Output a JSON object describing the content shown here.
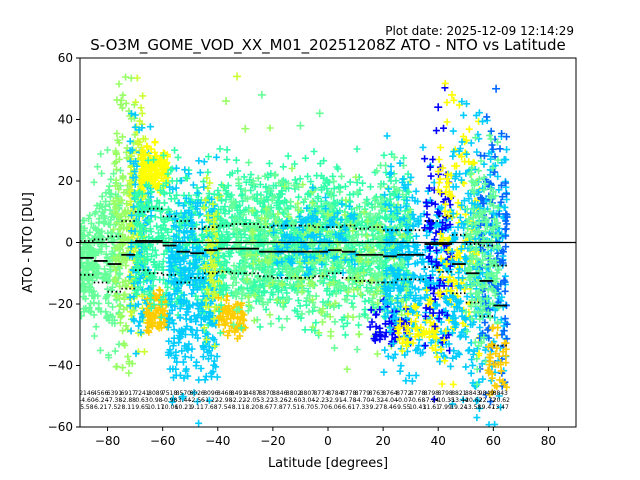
{
  "plot_date": "Plot date: 2025-12-09 12:14:29",
  "chart_data": {
    "type": "scatter",
    "title": "S-O3M_GOME_VOD_XX_M01_20251208Z ATO - NTO vs Latitude",
    "xlabel": "Latitude [degrees]",
    "ylabel": "ATO - NTO [DU]",
    "xlim": [
      -90,
      90
    ],
    "ylim": [
      -60,
      60
    ],
    "x_ticks": [
      -80,
      -60,
      -40,
      -20,
      0,
      20,
      40,
      60,
      80
    ],
    "y_ticks": [
      -60,
      -40,
      -20,
      0,
      20,
      40,
      60
    ],
    "grid": false,
    "zero_line": 0,
    "bins": [
      {
        "lat": -87.5,
        "mean": -5.0,
        "std": 5.5
      },
      {
        "lat": -82.5,
        "mean": -6.0,
        "std": 7.0
      },
      {
        "lat": -77.5,
        "mean": -7.0,
        "std": 9.0
      },
      {
        "lat": -72.5,
        "mean": -4.0,
        "std": 11.0
      },
      {
        "lat": -67.5,
        "mean": 0.5,
        "std": 9.5
      },
      {
        "lat": -62.5,
        "mean": 0.5,
        "std": 10.5
      },
      {
        "lat": -57.5,
        "mean": -1.0,
        "std": 9.5
      },
      {
        "lat": -52.5,
        "mean": -3.0,
        "std": 10.0
      },
      {
        "lat": -47.5,
        "mean": -3.5,
        "std": 8.0
      },
      {
        "lat": -42.5,
        "mean": -2.5,
        "std": 7.5
      },
      {
        "lat": -37.5,
        "mean": -2.0,
        "std": 7.5
      },
      {
        "lat": -32.5,
        "mean": -2.0,
        "std": 8.0
      },
      {
        "lat": -27.5,
        "mean": -2.0,
        "std": 8.0
      },
      {
        "lat": -22.5,
        "mean": -3.0,
        "std": 8.0
      },
      {
        "lat": -17.5,
        "mean": -3.0,
        "std": 8.5
      },
      {
        "lat": -12.5,
        "mean": -3.0,
        "std": 8.5
      },
      {
        "lat": -7.5,
        "mean": -3.0,
        "std": 8.5
      },
      {
        "lat": -2.5,
        "mean": -3.0,
        "std": 8.0
      },
      {
        "lat": 2.5,
        "mean": -2.5,
        "std": 7.5
      },
      {
        "lat": 7.5,
        "mean": -3.0,
        "std": 8.5
      },
      {
        "lat": 12.5,
        "mean": -4.0,
        "std": 8.5
      },
      {
        "lat": 17.5,
        "mean": -4.0,
        "std": 9.0
      },
      {
        "lat": 22.5,
        "mean": -4.5,
        "std": 8.5
      },
      {
        "lat": 27.5,
        "mean": -4.0,
        "std": 8.0
      },
      {
        "lat": 32.5,
        "mean": -4.0,
        "std": 8.0
      },
      {
        "lat": 37.5,
        "mean": -0.5,
        "std": 7.5
      },
      {
        "lat": 42.5,
        "mean": -0.5,
        "std": 9.0
      },
      {
        "lat": 47.5,
        "mean": -7.0,
        "std": 9.5
      },
      {
        "lat": 52.5,
        "mean": -10.0,
        "std": 9.5
      },
      {
        "lat": 57.5,
        "mean": -12.5,
        "std": 11.5
      },
      {
        "lat": 62.5,
        "mean": -20.5,
        "std": 13.0
      }
    ],
    "bin_stats_rows": [
      [
        "2146",
        "4566",
        "6391",
        "6917",
        "7241",
        "8089",
        "7518",
        "8570",
        "8026",
        "8096",
        "8468",
        "8491",
        "8487",
        "8870",
        "8846",
        "8802",
        "8807",
        "8774",
        "8784",
        "8778",
        "8779",
        "8763",
        "8764",
        "8772",
        "8778",
        "8798",
        "8798",
        "8821",
        "8843",
        "9849",
        "8843"
      ],
      [
        "-4.60",
        "-6.24",
        "-7.38",
        "-2.88",
        "0.63",
        "0.98",
        "-0.98",
        "-3.44",
        "-2.56",
        "-1.22",
        "-2.98",
        "-2.22",
        "-2.05",
        "-3.22",
        "-3.26",
        "-2.60",
        "-3.04",
        "-2.23",
        "-2.91",
        "-4.78",
        "-4.70",
        "-4.32",
        "-4.04",
        "-0.07",
        "-0.68",
        "-7.24",
        "-10.35",
        "-13.44",
        "-20.62",
        "-22.72",
        "-20.62"
      ],
      [
        "5.58",
        "6.21",
        "7.52",
        "8.11",
        "9.65",
        "10.17",
        "10.06",
        "10.21",
        "9.11",
        "7.68",
        "7.54",
        "8.11",
        "8.20",
        "8.67",
        "7.87",
        "7.51",
        "6.70",
        "5.70",
        "6.06",
        "6.61",
        "7.33",
        "9.27",
        "8.46",
        "9.55",
        "10.43",
        "11.61",
        "7.99",
        "19.24",
        "13.58",
        "19.47",
        "13.47"
      ]
    ],
    "scatter_clusters": [
      {
        "lat_range": [
          -90,
          -85
        ],
        "y_range": [
          -25,
          10
        ],
        "color": "#66ff99",
        "density": 120
      },
      {
        "lat_range": [
          -85,
          -75
        ],
        "y_range": [
          -35,
          30
        ],
        "color": "#66ff99",
        "density": 200
      },
      {
        "lat_range": [
          -78,
          -70
        ],
        "y_range": [
          -45,
          55
        ],
        "color": "#99ff66",
        "density": 180
      },
      {
        "lat_range": [
          -72,
          -66
        ],
        "y_range": [
          -40,
          50
        ],
        "color": "#ccff33",
        "density": 140
      },
      {
        "lat_range": [
          -72,
          -64
        ],
        "y_range": [
          -48,
          45
        ],
        "color": "#00ccff",
        "density": 120
      },
      {
        "lat_range": [
          -68,
          -58
        ],
        "y_range": [
          15,
          32
        ],
        "color": "#ffff00",
        "density": 160
      },
      {
        "lat_range": [
          -66,
          -58
        ],
        "y_range": [
          -30,
          -15
        ],
        "color": "#ffcc00",
        "density": 90
      },
      {
        "lat_range": [
          -70,
          -40
        ],
        "y_range": [
          -30,
          30
        ],
        "color": "#33ffaa",
        "density": 400
      },
      {
        "lat_range": [
          -58,
          -40
        ],
        "y_range": [
          -55,
          27
        ],
        "color": "#00ccff",
        "density": 360
      },
      {
        "lat_range": [
          -45,
          -38
        ],
        "y_range": [
          -35,
          25
        ],
        "color": "#ccff33",
        "density": 90
      },
      {
        "lat_range": [
          -40,
          -30
        ],
        "y_range": [
          -32,
          -18
        ],
        "color": "#ffcc00",
        "density": 70
      },
      {
        "lat_range": [
          -40,
          30
        ],
        "y_range": [
          -28,
          28
        ],
        "color": "#33ffaa",
        "density": 1200
      },
      {
        "lat_range": [
          -35,
          30
        ],
        "y_range": [
          -30,
          25
        ],
        "color": "#66ff99",
        "density": 500
      },
      {
        "lat_range": [
          -30,
          30
        ],
        "y_range": [
          -40,
          30
        ],
        "color": "#99ff66",
        "density": 180
      },
      {
        "lat_range": [
          -20,
          10
        ],
        "y_range": [
          -12,
          15
        ],
        "color": "#00ccff",
        "density": 120
      },
      {
        "lat_range": [
          15,
          30
        ],
        "y_range": [
          -35,
          -18
        ],
        "color": "#0000ff",
        "density": 60
      },
      {
        "lat_range": [
          20,
          45
        ],
        "y_range": [
          -45,
          30
        ],
        "color": "#00ccff",
        "density": 350
      },
      {
        "lat_range": [
          25,
          40
        ],
        "y_range": [
          -40,
          -15
        ],
        "color": "#ffff00",
        "density": 60
      },
      {
        "lat_range": [
          35,
          45
        ],
        "y_range": [
          -50,
          45
        ],
        "color": "#0000ff",
        "density": 90
      },
      {
        "lat_range": [
          40,
          55
        ],
        "y_range": [
          -50,
          48
        ],
        "color": "#ffff00",
        "density": 150
      },
      {
        "lat_range": [
          45,
          65
        ],
        "y_range": [
          -60,
          45
        ],
        "color": "#00ccff",
        "density": 320
      },
      {
        "lat_range": [
          55,
          65
        ],
        "y_range": [
          -58,
          50
        ],
        "color": "#0066ff",
        "density": 120
      },
      {
        "lat_range": [
          50,
          62
        ],
        "y_range": [
          -40,
          35
        ],
        "color": "#66ff99",
        "density": 180
      },
      {
        "lat_range": [
          58,
          65
        ],
        "y_range": [
          -50,
          -25
        ],
        "color": "#ffcc00",
        "density": 40
      }
    ],
    "outliers": [
      {
        "x": -37,
        "y": 46,
        "color": "#99ff66"
      },
      {
        "x": -33,
        "y": 54,
        "color": "#ccff33"
      },
      {
        "x": -24,
        "y": 48,
        "color": "#66ff99"
      },
      {
        "x": -10,
        "y": 38,
        "color": "#66ff99"
      },
      {
        "x": -3,
        "y": 42,
        "color": "#66ff99"
      },
      {
        "x": -30,
        "y": 37,
        "color": "#99ff66"
      },
      {
        "x": 61,
        "y": 50,
        "color": "#0066ff"
      },
      {
        "x": 40,
        "y": 44,
        "color": "#0000ff"
      },
      {
        "x": 45,
        "y": 48,
        "color": "#ffff00"
      }
    ]
  }
}
